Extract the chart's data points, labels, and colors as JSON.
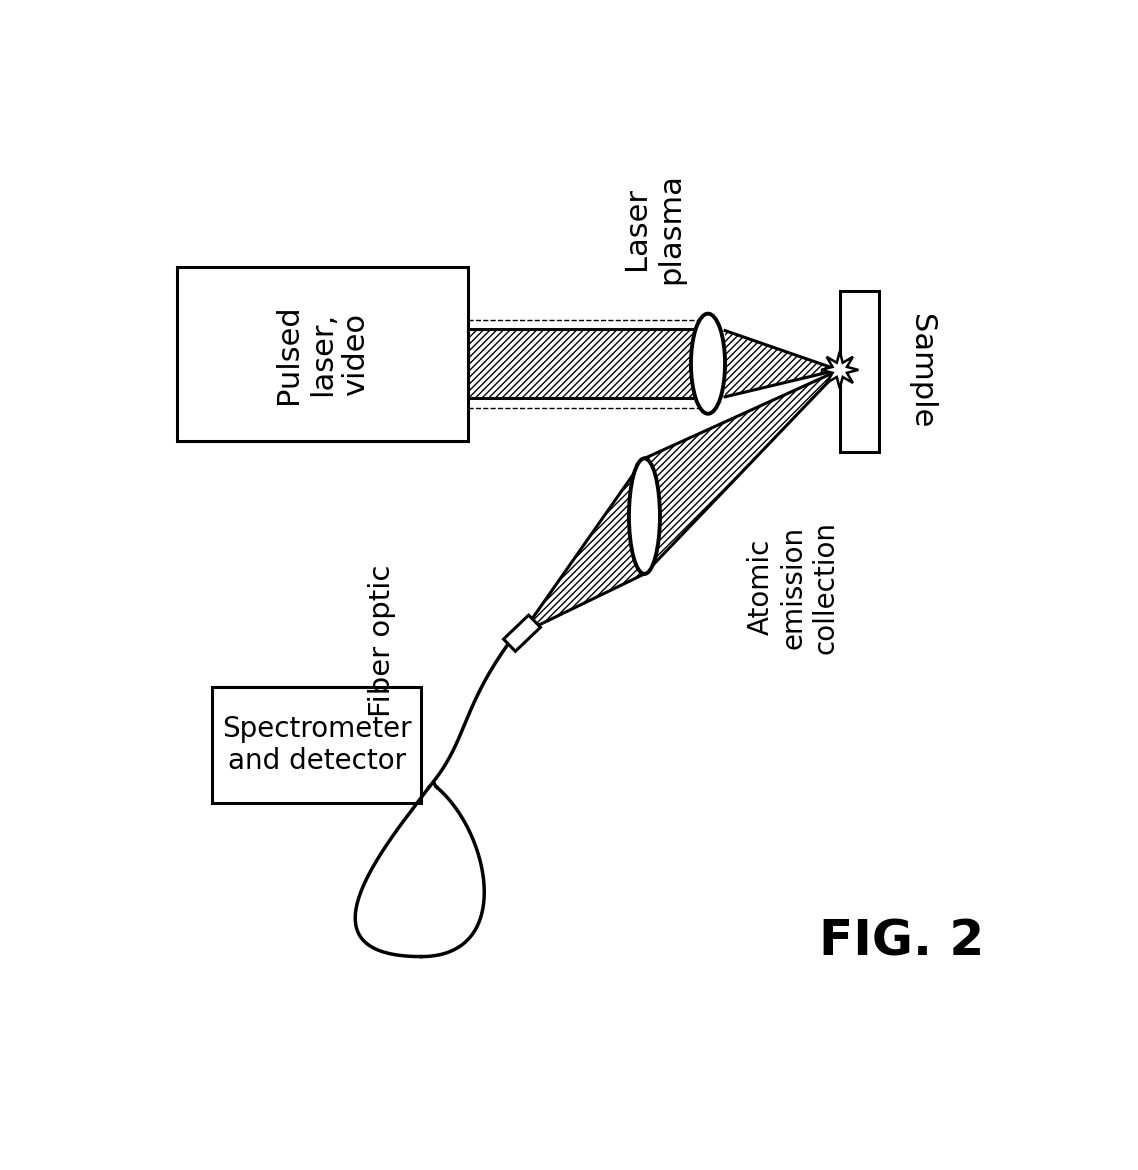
{
  "background_color": "#ffffff",
  "line_color": "#000000",
  "labels": {
    "pulsed_laser": "Pulsed\nlaser,\nvideo",
    "laser_plasma": "Laser\nplasma",
    "sample": "Sample",
    "fiber_optic": "Fiber optic",
    "spectrometer": "Spectrometer\nand detector",
    "atomic_emission": "Atomic\nemission\ncollection",
    "fig": "FIG. 2"
  },
  "fontsize": 20,
  "fig_fontsize": 36,
  "lw": 2.2
}
